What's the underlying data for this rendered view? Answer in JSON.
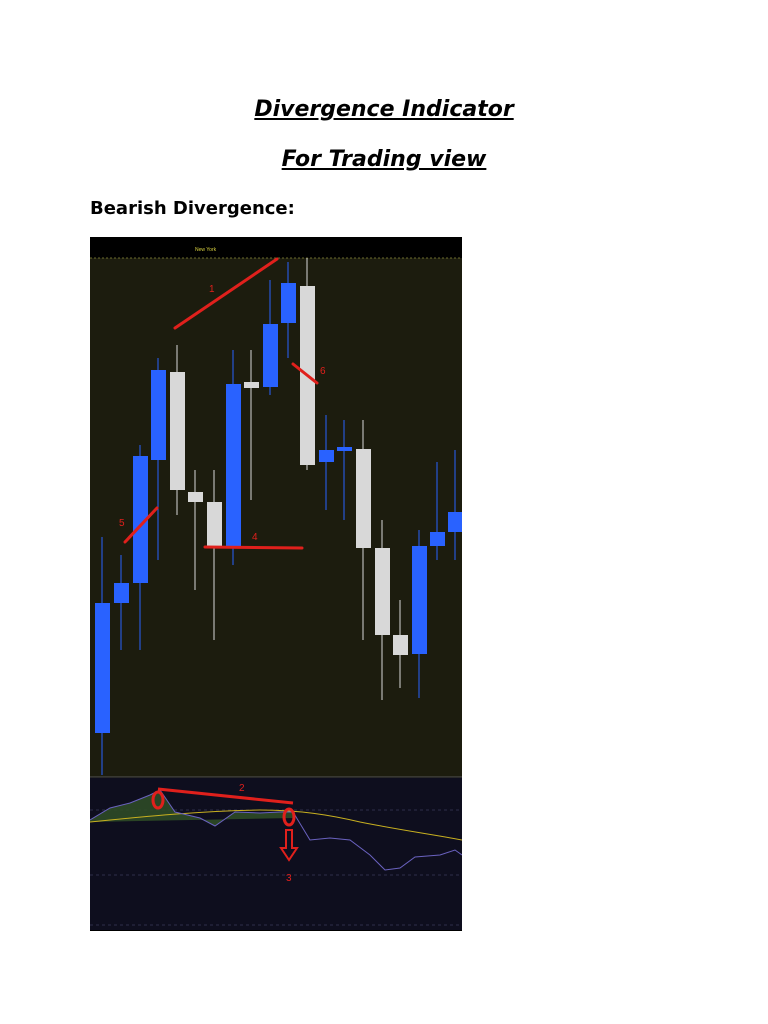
{
  "header": {
    "title": "Divergence Indicator",
    "subtitle": "For Trading view"
  },
  "section": {
    "heading": "Bearish Divergence:"
  },
  "chart_image": {
    "session_label": "New York",
    "annotations": [
      "1",
      "2",
      "3",
      "4",
      "5",
      "6"
    ]
  }
}
